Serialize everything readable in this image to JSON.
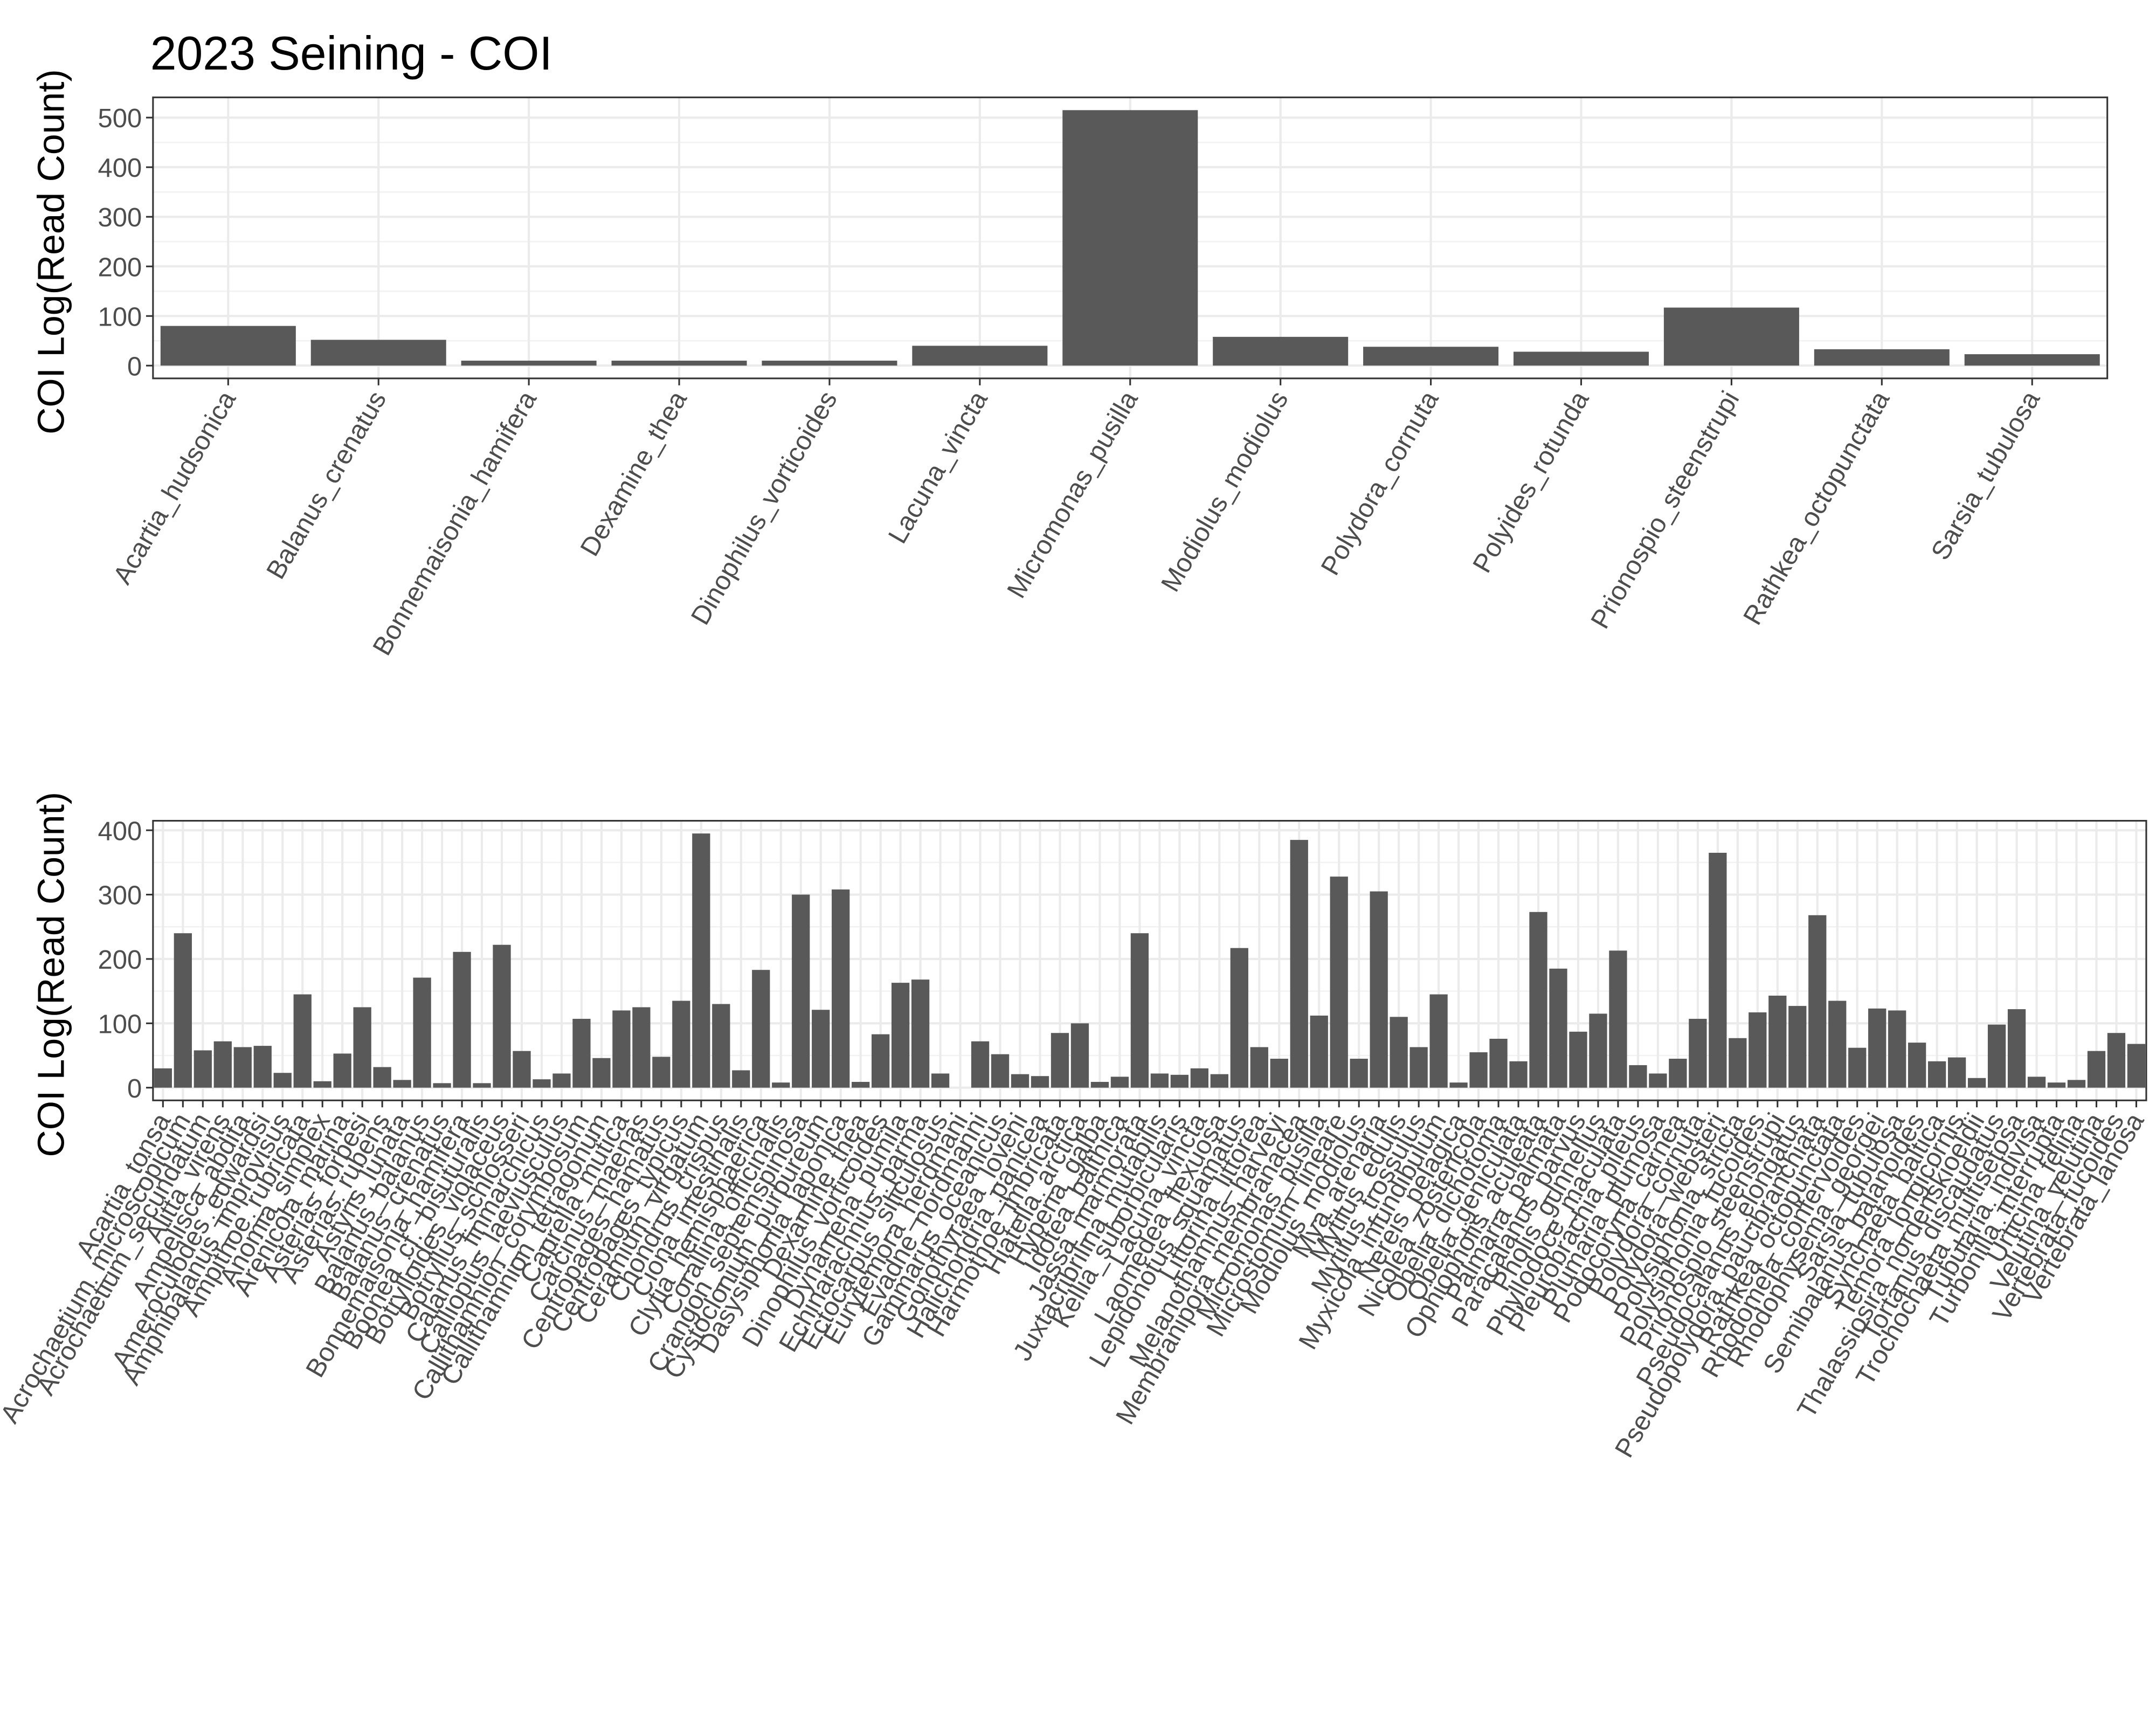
{
  "chart_data": [
    {
      "type": "bar",
      "title": "2023 Seining - COI",
      "y_label": "COI Log(Read Count)",
      "color": "#595959",
      "grid": true,
      "categories": [
        "Acartia_hudsonica",
        "Balanus_crenatus",
        "Bonnemaisonia_hamifera",
        "Dexamine_thea",
        "Dinophilus_vorticoides",
        "Lacuna_vincta",
        "Micromonas_pusilla",
        "Modiolus_modiolus",
        "Polydora_cornuta",
        "Polyides_rotunda",
        "Prionospio_steenstrupi",
        "Rathkea_octopunctata",
        "Sarsia_tubulosa"
      ],
      "values": [
        80,
        52,
        10,
        10,
        10,
        40,
        515,
        58,
        38,
        28,
        117,
        33,
        23
      ],
      "ylim": [
        -25.75,
        540.75
      ],
      "yticks": [
        0,
        100,
        200,
        300,
        400,
        500
      ]
    },
    {
      "type": "bar",
      "y_label": "COI Log(Read Count)",
      "color": "#595959",
      "grid": true,
      "categories": [
        "Acartia_tonsa",
        "Acrochaetium_microscopicum",
        "Acrochaetium_secundatum",
        "Alitta_virens",
        "Ampelisca_abdita",
        "Ameroculodes_edwardsi",
        "Amphibalanus_improvisus",
        "Ampithoe_rubricata",
        "Anomia_simplex",
        "Arenicola_marina",
        "Asterias_forbesi",
        "Asterias_rubens",
        "Astyris_lunata",
        "Balanus_balanus",
        "Balanus_crenatus",
        "Bonnemaisonia_hamifera",
        "Boonea_cf._bisuturalis",
        "Botrylloides_violaceus",
        "Botryllus_schlosseri",
        "Calanus_finmarchicus",
        "Calliopius_laeviusculus",
        "Callithamnion_corymbosum",
        "Callithamnion_tetragonum",
        "Caprella_mutica",
        "Carcinus_maenas",
        "Centropages_hamatus",
        "Centropages_typicus",
        "Ceramium_virgatum",
        "Chondrus_crispus",
        "Ciona_intestinalis",
        "Clytia_hemisphaerica",
        "Corallina_officinalis",
        "Crangon_septemspinosa",
        "Cystoclonium_purpureum",
        "Dasysiphonia_japonica",
        "Dexamine_thea",
        "Dinophilus_vorticoides",
        "Dynamena_pumila",
        "Echinarachnius_parma",
        "Ectocarpus_siliculosus",
        "Eurytemora_herdmani",
        "Evadne_nordmanni",
        "Gammarus_oceanicus",
        "Gonothyraea_loveni",
        "Halichondria_panicea",
        "Harmothoe_imbricata",
        "Hiatella_arctica",
        "Hyperia_galba",
        "Idotea_balthica",
        "Jassa_marmorata",
        "Juxtacribrilina_mutabilis",
        "Kellia_suborbicularis",
        "Lacuna_vincta",
        "Laomedea_flexuosa",
        "Lepidonotus_squamatus",
        "Littorina_littorea",
        "Melanothamnus_harveyi",
        "Membranipora_membranacea",
        "Micromonas_pusilla",
        "Microstomum_lineare",
        "Modiolus_modiolus",
        "Mya_arenaria",
        "Mytilus_edulis",
        "Mytilus_trossulus",
        "Myxicola_infundibulum",
        "Nereis_pelagica",
        "Nicolea_zostericola",
        "Obelia_dichotoma",
        "Obelia_geniculata",
        "Ophiopholis_aculeata",
        "Palmaria_palmata",
        "Paracalanus_parvus",
        "Pholis_gunnellus",
        "Phyllodoce_maculata",
        "Pleurobrachia_pileus",
        "Plumaria_plumosa",
        "Podocoryna_carnea",
        "Polydora_cornuta",
        "Polydora_websteri",
        "Polysiphonia_stricta",
        "Polysiphonia_fucoides",
        "Prionospio_steenstrupi",
        "Pseudocalanus_elongatus",
        "Pseudopolydora_paucibranchiata",
        "Rathkea_octopunctata",
        "Rhodomela_confervoides",
        "Rhodophysema_georgei",
        "Sarsia_tubulosa",
        "Semibalanus_balanoides",
        "Synchaeta_baltica",
        "Temora_longicornis",
        "Thalassiosira_nordenskioeldii",
        "Tortanus_discaudatus",
        "Trochochaeta_multisetosa",
        "Tubularia_indivisa",
        "Turbonilla_interrupta",
        "Urticina_felina",
        "Velutina_velutina",
        "Vertebrata_fucoides",
        "Vertebrata_lanosa"
      ],
      "values": [
        30,
        240,
        58,
        72,
        63,
        65,
        23,
        145,
        10,
        53,
        125,
        32,
        12,
        171,
        7,
        211,
        7,
        222,
        57,
        13,
        22,
        107,
        46,
        120,
        125,
        48,
        135,
        395,
        130,
        27,
        183,
        8,
        300,
        121,
        308,
        9,
        83,
        163,
        168,
        22,
        0,
        72,
        52,
        21,
        18,
        85,
        100,
        9,
        17,
        240,
        22,
        20,
        30,
        21,
        217,
        63,
        45,
        385,
        112,
        328,
        45,
        305,
        110,
        63,
        145,
        8,
        55,
        76,
        41,
        273,
        185,
        87,
        115,
        213,
        35,
        22,
        45,
        107,
        365,
        77,
        117,
        143,
        127,
        268,
        135,
        62,
        123,
        120,
        70,
        41,
        47,
        15,
        98,
        122,
        17,
        8,
        12,
        57,
        85,
        68
      ],
      "ylim": [
        -19.75,
        414.75
      ],
      "yticks": [
        0,
        100,
        200,
        300,
        400
      ]
    }
  ]
}
